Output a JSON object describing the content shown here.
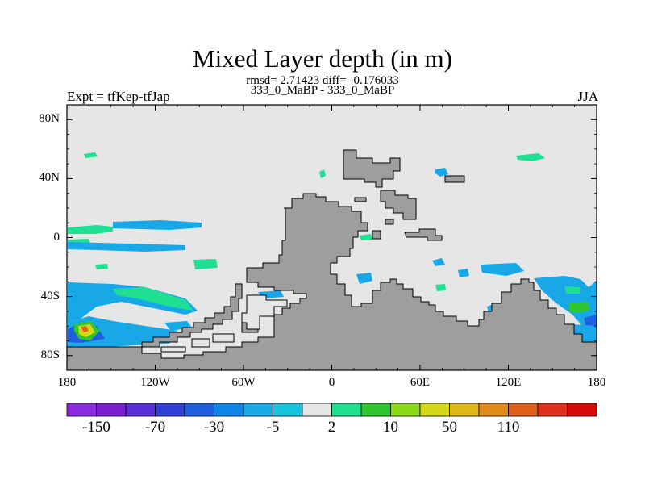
{
  "chart_data": {
    "type": "heatmap",
    "title": "Mixed Layer depth (in m)",
    "stats_line": "rmsd= 2.71423 diff= -0.176033",
    "subtitle": "333_0_MaBP - 333_0_MaBP",
    "left_label": "Expt = tfKep-tfJap",
    "right_label": "JJA",
    "xlim": [
      -180,
      180
    ],
    "ylim": [
      -90,
      90
    ],
    "y_ticks": [
      {
        "value": 80,
        "label": "80N"
      },
      {
        "value": 40,
        "label": "40N"
      },
      {
        "value": 0,
        "label": "0"
      },
      {
        "value": -40,
        "label": "40S"
      },
      {
        "value": -80,
        "label": "80S"
      }
    ],
    "x_ticks": [
      {
        "value": -180,
        "label": "180"
      },
      {
        "value": -120,
        "label": "120W"
      },
      {
        "value": -60,
        "label": "60W"
      },
      {
        "value": 0,
        "label": "0"
      },
      {
        "value": 60,
        "label": "60E"
      },
      {
        "value": 120,
        "label": "120E"
      },
      {
        "value": 180,
        "label": "180"
      }
    ],
    "colorbar": {
      "colors": [
        "#8a2be2",
        "#7a1fd0",
        "#5a2fd8",
        "#2f3fd8",
        "#1e5fe0",
        "#0b86e8",
        "#18a8e8",
        "#17c5de",
        "#e6e6e6",
        "#1ee090",
        "#2ec82e",
        "#8ad818",
        "#d4d816",
        "#e0b816",
        "#e08a18",
        "#e0601a",
        "#e0301c",
        "#d80a0a"
      ],
      "labels": [
        {
          "after_index": 0,
          "label": "-150"
        },
        {
          "after_index": 2,
          "label": "-70"
        },
        {
          "after_index": 4,
          "label": "-30"
        },
        {
          "after_index": 6,
          "label": "-5"
        },
        {
          "after_index": 8,
          "label": "2"
        },
        {
          "after_index": 10,
          "label": "10"
        },
        {
          "after_index": 12,
          "label": "50"
        },
        {
          "after_index": 14,
          "label": "110"
        }
      ]
    },
    "background_color": "#e6e6e6",
    "land_color": "#9e9e9e"
  }
}
